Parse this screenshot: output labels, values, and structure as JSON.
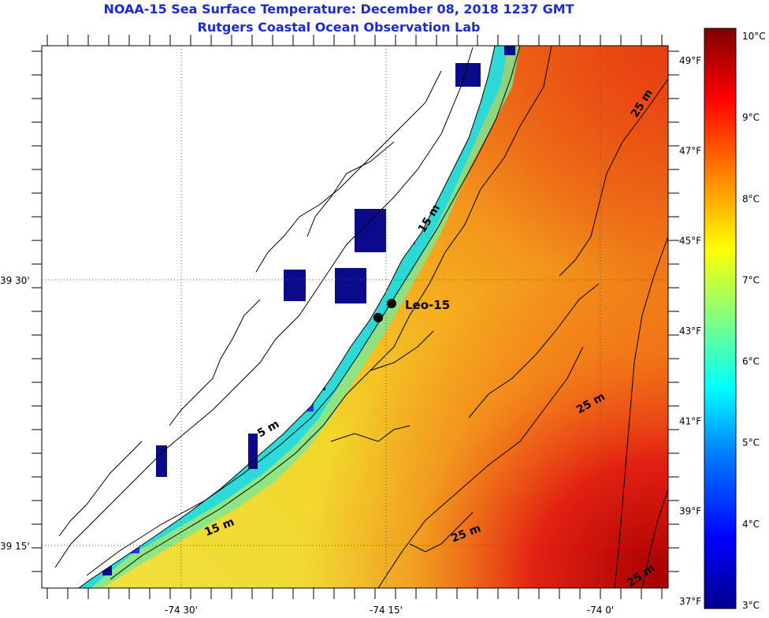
{
  "title": {
    "line1": "NOAA-15 Sea Surface Temperature:  December 08, 2018 1237 GMT",
    "line2": "Rutgers Coastal Ocean Observation Lab"
  },
  "map": {
    "lon_labels": [
      "-74 30'",
      "-74 15'",
      "-74 0'"
    ],
    "lat_labels": [
      "39 30'",
      "39 15'"
    ],
    "station_label": "Leo-15",
    "contour_labels": [
      "5 m",
      "15 m",
      "15 m",
      "25 m",
      "25 m",
      "25 m",
      "25 m"
    ]
  },
  "colorbar": {
    "celsius_labels": [
      "10°C",
      "9°C",
      "8°C",
      "7°C",
      "6°C",
      "5°C",
      "4°C",
      "3°C"
    ],
    "fahrenheit_labels": [
      "49°F",
      "47°F",
      "45°F",
      "43°F",
      "41°F",
      "39°F",
      "37°F"
    ],
    "colors": [
      "#00008f",
      "#0000ff",
      "#0080ff",
      "#00ffff",
      "#80ff80",
      "#ffff00",
      "#ff8000",
      "#ff0000",
      "#800000"
    ]
  }
}
